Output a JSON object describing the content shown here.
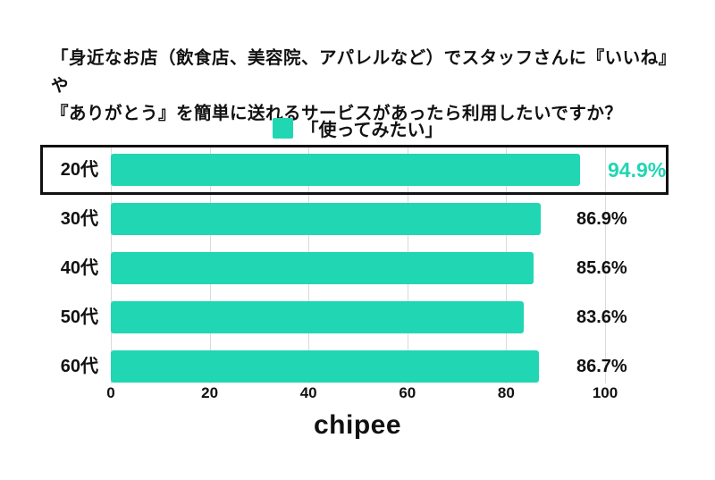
{
  "title": {
    "line1": "「身近なお店（飲食店、美容院、アパレルなど）でスタッフさんに『いいね』や",
    "line2": "『ありがとう』を簡単に送れるサービスがあったら利用したいですか？"
  },
  "legend": {
    "label": "「使ってみたい」"
  },
  "chart_data": {
    "type": "bar",
    "orientation": "horizontal",
    "title": "「身近なお店（飲食店、美容院、アパレルなど）でスタッフさんに『いいね』や『ありがとう』を簡単に送れるサービスがあったら利用したいですか？",
    "series_name": "「使ってみたい」",
    "categories": [
      "20代",
      "30代",
      "40代",
      "50代",
      "60代"
    ],
    "values": [
      94.9,
      86.9,
      85.6,
      83.6,
      86.7
    ],
    "value_labels": [
      "94.9%",
      "86.9%",
      "85.6%",
      "83.6%",
      "86.7%"
    ],
    "highlighted_index": 0,
    "xlim": [
      0,
      100
    ],
    "x_ticks": [
      "0",
      "20",
      "40",
      "60",
      "80",
      "100"
    ],
    "grid": "vertical-only",
    "legend_position": "top-center"
  },
  "footer": {
    "logo_text": "chipee"
  },
  "colors": {
    "accent_teal": "#20d6b3",
    "text": "#111111",
    "gridline": "#dadada",
    "highlight_border": "#111111"
  }
}
